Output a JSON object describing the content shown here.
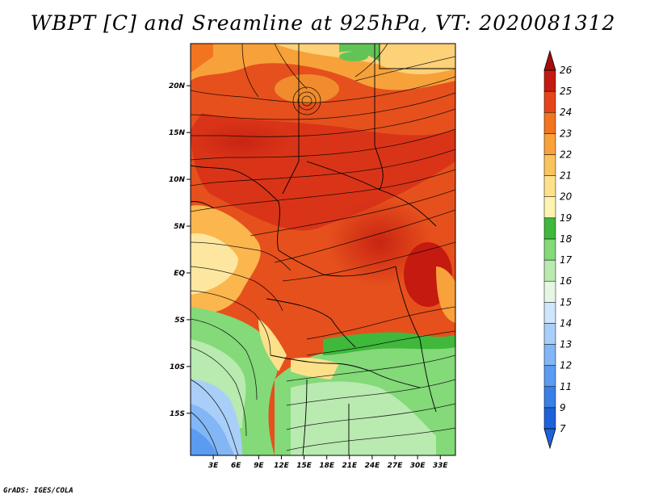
{
  "title": "WBPT [C] and Sreamline at 925hPa, VT: 2020081312",
  "credit": "GrADS: IGES/COLA",
  "map": {
    "lon_ticks": [
      "3E",
      "6E",
      "9E",
      "12E",
      "15E",
      "18E",
      "21E",
      "24E",
      "27E",
      "30E",
      "33E"
    ],
    "lat_ticks": [
      "20N",
      "15N",
      "10N",
      "5N",
      "EQ",
      "5S",
      "10S",
      "15S"
    ],
    "lon_range": [
      0,
      35
    ],
    "lat_range": [
      -19.5,
      24.5
    ]
  },
  "colorbar": {
    "labels": [
      "7",
      "9",
      "11",
      "12",
      "13",
      "14",
      "15",
      "16",
      "17",
      "18",
      "19",
      "20",
      "21",
      "22",
      "23",
      "24",
      "25",
      "26"
    ],
    "colors": [
      "#1d62d9",
      "#3a7fe6",
      "#5b9bf0",
      "#83b6f5",
      "#a9cff8",
      "#cfe6fb",
      "#e5f7e2",
      "#b9eab0",
      "#84d979",
      "#3fb83c",
      "#fcf4b0",
      "#fde08a",
      "#fbc35c",
      "#f9a13b",
      "#f2741f",
      "#e4451b",
      "#c41a10"
    ]
  }
}
